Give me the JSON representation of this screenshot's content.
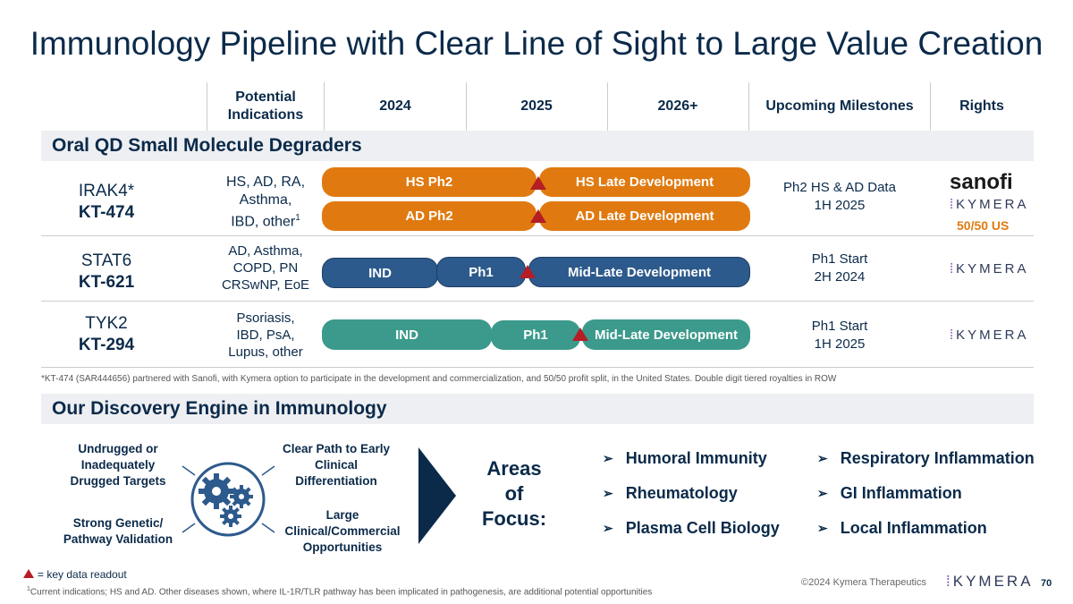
{
  "title": "Immunology Pipeline with Clear Line of Sight to Large Value Creation",
  "headers": {
    "indications": "Potential Indications",
    "y2024": "2024",
    "y2025": "2025",
    "y2026": "2026+",
    "milestones": "Upcoming Milestones",
    "rights": "Rights"
  },
  "section1": "Oral QD Small Molecule Degraders",
  "rows": [
    {
      "target": "IRAK4*",
      "code": "KT-474",
      "indications": [
        "HS, AD, RA,",
        "Asthma,",
        "IBD, other"
      ],
      "indications_sup": "1",
      "bars": [
        "HS Ph2",
        "HS Late Development",
        "AD Ph2",
        "AD Late Development"
      ],
      "milestone": [
        "Ph2 HS & AD Data",
        "1H 2025"
      ],
      "partner": "sanofi",
      "rights_company": "KYMERA",
      "rights_note": "50/50 US"
    },
    {
      "target": "STAT6",
      "code": "KT-621",
      "indications": [
        "AD, Asthma,",
        "COPD, PN",
        "CRSwNP, EoE"
      ],
      "bars": [
        "IND",
        "Ph1",
        "Mid-Late Development"
      ],
      "milestone": [
        "Ph1 Start",
        "2H 2024"
      ],
      "rights_company": "KYMERA"
    },
    {
      "target": "TYK2",
      "code": "KT-294",
      "indications": [
        "Psoriasis,",
        "IBD, PsA,",
        "Lupus, other"
      ],
      "bars": [
        "IND",
        "Ph1",
        "Mid-Late Development"
      ],
      "milestone": [
        "Ph1 Start",
        "1H 2025"
      ],
      "rights_company": "KYMERA"
    }
  ],
  "partner_footnote": "*KT-474 (SAR444656) partnered with Sanofi, with Kymera option to participate in the development and commercialization, and 50/50 profit split, in the United States. Double digit tiered royalties in ROW",
  "section2": "Our Discovery Engine in Immunology",
  "discovery": {
    "top_left": [
      "Undrugged or",
      "Inadequately",
      "Drugged Targets"
    ],
    "top_right": [
      "Clear Path to Early",
      "Clinical",
      "Differentiation"
    ],
    "bottom_left": [
      "Strong Genetic/",
      "Pathway Validation"
    ],
    "bottom_right": [
      "Large",
      "Clinical/Commercial",
      "Opportunities"
    ]
  },
  "areas_label": [
    "Areas",
    "of",
    "Focus:"
  ],
  "focus_left": [
    "Humoral Immunity",
    "Rheumatology",
    "Plasma Cell Biology"
  ],
  "focus_right": [
    "Respiratory Inflammation",
    "GI Inflammation",
    "Local Inflammation"
  ],
  "legend": "= key data readout",
  "bottom_footnote_sup": "1",
  "bottom_footnote": "Current indications; HS and AD. Other diseases shown, where IL-1R/TLR pathway has been implicated in pathogenesis, are additional potential opportunities",
  "copyright": "©2024 Kymera Therapeutics",
  "footer_logo": "KYMERA",
  "page_number": "70",
  "colors": {
    "navy": "#0b2a4a",
    "orange": "#e07a10",
    "blue": "#2d5a8c",
    "teal": "#3b9a8b",
    "red": "#b41e24"
  }
}
